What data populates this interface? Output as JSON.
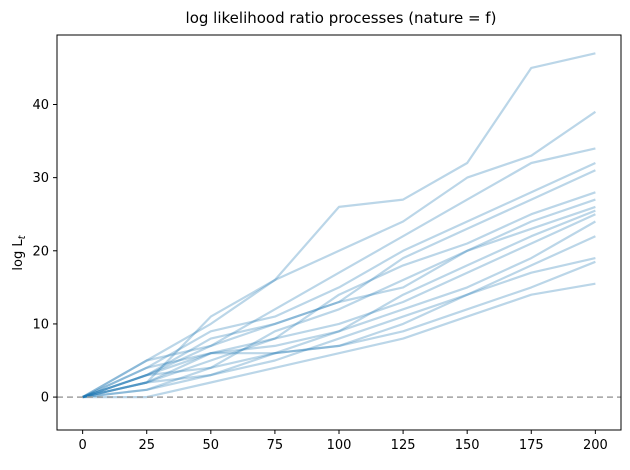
{
  "chart_data": {
    "type": "line",
    "title": "log likelihood ratio processes (nature = f)",
    "xlabel": "",
    "ylabel": "log L",
    "ylabel_subscript": "t",
    "xlim": [
      -10,
      210
    ],
    "ylim": [
      -4.5,
      49.5
    ],
    "xticks": [
      0,
      25,
      50,
      75,
      100,
      125,
      150,
      175,
      200
    ],
    "yticks": [
      0,
      10,
      20,
      30,
      40
    ],
    "grid": false,
    "line_color": "#1f77b4",
    "line_alpha": 0.3,
    "reference_line": {
      "y": 0,
      "style": "dashed",
      "color": "#a0a0a0"
    },
    "x": [
      0,
      25,
      50,
      75,
      100,
      125,
      150,
      175,
      200
    ],
    "series": [
      {
        "values": [
          0,
          2,
          11,
          16,
          26,
          27,
          32,
          45,
          47
        ]
      },
      {
        "values": [
          0,
          5,
          10,
          16,
          20,
          24,
          30,
          33,
          39
        ]
      },
      {
        "values": [
          0,
          3,
          7,
          12,
          17,
          22,
          27,
          32,
          34
        ]
      },
      {
        "values": [
          0,
          4,
          9,
          11,
          15,
          20,
          24,
          28,
          32
        ]
      },
      {
        "values": [
          0,
          3,
          8,
          10,
          13,
          19,
          23,
          27,
          31
        ]
      },
      {
        "values": [
          0,
          2,
          6,
          8,
          14,
          18,
          21,
          25,
          28
        ]
      },
      {
        "values": [
          0,
          5,
          7,
          10,
          13,
          15,
          20,
          24,
          27
        ]
      },
      {
        "values": [
          0,
          1,
          4,
          9,
          12,
          16,
          20,
          23,
          26
        ]
      },
      {
        "values": [
          0,
          4,
          6,
          7,
          9,
          14,
          18,
          22,
          25.5
        ]
      },
      {
        "values": [
          0,
          2,
          5,
          8,
          10,
          13,
          17,
          21,
          25
        ]
      },
      {
        "values": [
          0,
          3,
          6,
          6,
          9,
          12,
          15,
          19,
          24
        ]
      },
      {
        "values": [
          0,
          1,
          3,
          5,
          8,
          11,
          14,
          18,
          22
        ]
      },
      {
        "values": [
          0,
          3,
          4,
          6,
          7,
          10,
          14,
          17,
          19
        ]
      },
      {
        "values": [
          0,
          2,
          3,
          6,
          7,
          9,
          12,
          15,
          18.5
        ]
      },
      {
        "values": [
          0,
          0,
          2,
          4,
          6,
          8,
          11,
          14,
          15.5
        ]
      }
    ]
  }
}
